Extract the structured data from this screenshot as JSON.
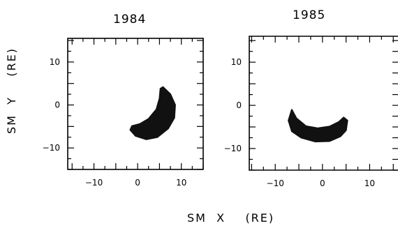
{
  "panels": [
    {
      "title": "1984"
    },
    {
      "title": "1985"
    }
  ],
  "axis": {
    "xlabel": "SM  X    (RE)",
    "ylabel": "SM  Y    (RE)"
  },
  "chart_data": [
    {
      "type": "scatter",
      "title": "1984",
      "xlabel": "SM X (RE)",
      "ylabel": "SM Y (RE)",
      "xlim": [
        -16,
        15
      ],
      "ylim": [
        -15,
        15.5
      ],
      "xticks": [
        -10,
        0,
        10
      ],
      "yticks": [
        -10,
        0,
        10
      ],
      "region": {
        "shape": "crescent",
        "color": "#111111",
        "outer": [
          [
            5.8,
            4.2
          ],
          [
            7.5,
            2.5
          ],
          [
            8.6,
            0
          ],
          [
            8.4,
            -3
          ],
          [
            7.0,
            -5.5
          ],
          [
            4.5,
            -7.5
          ],
          [
            2.0,
            -8.0
          ],
          [
            -0.5,
            -7.2
          ],
          [
            -1.7,
            -5.8
          ],
          [
            -1.3,
            -4.9
          ]
        ],
        "inner": [
          [
            0.5,
            -4.4
          ],
          [
            2.5,
            -3.2
          ],
          [
            4.3,
            -1.0
          ],
          [
            5.0,
            1.5
          ],
          [
            5.2,
            3.8
          ]
        ]
      }
    },
    {
      "type": "scatter",
      "title": "1985",
      "xlabel": "SM X (RE)",
      "ylabel": "SM Y (RE)",
      "xlim": [
        -15.5,
        16
      ],
      "ylim": [
        -15,
        16
      ],
      "xticks": [
        -10,
        0,
        10
      ],
      "yticks": [
        -10,
        0,
        10
      ],
      "region": {
        "shape": "crescent",
        "color": "#111111",
        "outer": [
          [
            -6.5,
            -1.0
          ],
          [
            -7.2,
            -3.5
          ],
          [
            -6.5,
            -6.0
          ],
          [
            -4.5,
            -7.5
          ],
          [
            -1.5,
            -8.4
          ],
          [
            1.5,
            -8.3
          ],
          [
            3.8,
            -7.2
          ],
          [
            5.0,
            -5.8
          ],
          [
            5.3,
            -3.5
          ],
          [
            4.5,
            -2.8
          ]
        ],
        "inner": [
          [
            3.5,
            -3.8
          ],
          [
            1.5,
            -4.9
          ],
          [
            -1.0,
            -5.3
          ],
          [
            -3.5,
            -4.8
          ],
          [
            -5.5,
            -3.0
          ]
        ]
      }
    }
  ]
}
